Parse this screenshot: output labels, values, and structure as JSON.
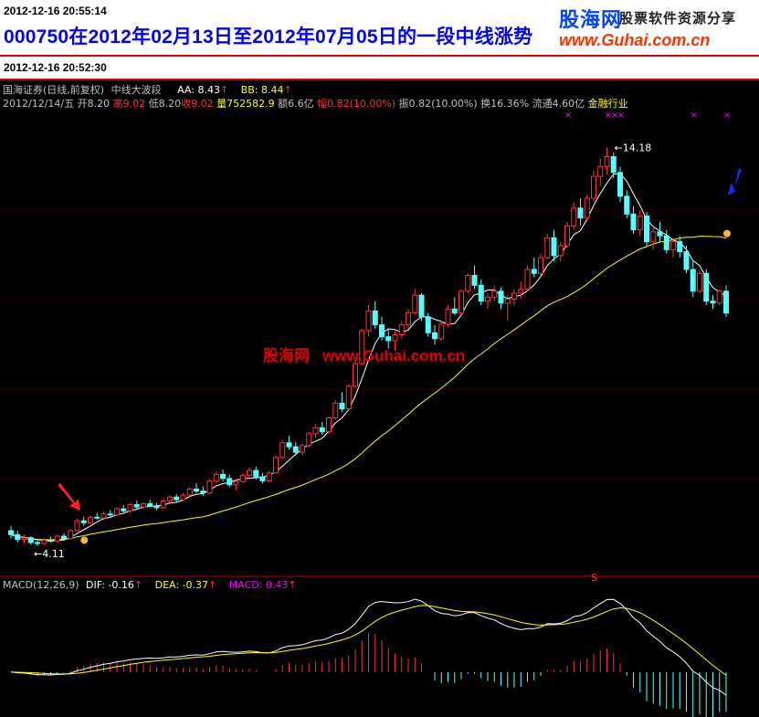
{
  "header": {
    "timestamp": "2012-12-16 20:55:14",
    "title": "000750在2012年02月13日至2012年07月05日的一段中线涨势"
  },
  "logo": {
    "name": "股海网",
    "tagline": "股票软件资源分享",
    "url": "www.Guhai.com.cn"
  },
  "subheader": {
    "timestamp": "2012-12-16 20:52:30"
  },
  "indicator_line": {
    "name": "国海证券(日线,前复权)",
    "formula": "中线大波段",
    "aa_label": "AA: 8.43",
    "bb_label": "BB: 8.44",
    "up_arrow": "↑"
  },
  "quote_line": {
    "date": "2012/12/14/五",
    "open": "开8.20",
    "high": "高9.02",
    "low": "低8.20",
    "close": "收9.02",
    "volume": "量752582.9",
    "amount": "额6.6亿",
    "change_pct": "幅0.82(10.00%)",
    "amplitude": "振0.82(10.00%)",
    "turnover": "换16.36%",
    "float_cap": "流通4.60亿",
    "sector": "金融行业"
  },
  "watermark": {
    "name": "股海网",
    "url": "www.Guhai.com.cn"
  },
  "price_annotations": {
    "high_label": "14.18",
    "low_label": "4.11",
    "s_marker": "S"
  },
  "macd_header": {
    "name": "MACD(12,26,9)",
    "dif": "DIF: -0.16",
    "dea": "DEA: -0.37",
    "macd": "MACD: 0.43",
    "up_arrow": "↑"
  },
  "colors": {
    "up": "#ff3232",
    "down": "#54ffff",
    "ma_short": "#ffffff",
    "ma_long": "#ffff00",
    "header_title": "#0000ff",
    "header_border": "#e00000",
    "macd_dea": "#ffff00",
    "macd_label": "#ff00ff",
    "buy_arrow": "#ff2020",
    "sell_arrow": "#1a2aff"
  },
  "chart_data": {
    "type": "candlestick",
    "price_range": [
      3.6,
      15.0
    ],
    "candles": [
      [
        4.5,
        4.62,
        4.3,
        4.4
      ],
      [
        4.4,
        4.5,
        4.2,
        4.28
      ],
      [
        4.28,
        4.4,
        4.18,
        4.32
      ],
      [
        4.32,
        4.36,
        4.15,
        4.2
      ],
      [
        4.2,
        4.3,
        4.11,
        4.18
      ],
      [
        4.18,
        4.3,
        4.14,
        4.26
      ],
      [
        4.26,
        4.35,
        4.2,
        4.24
      ],
      [
        4.24,
        4.4,
        4.2,
        4.36
      ],
      [
        4.36,
        4.44,
        4.25,
        4.3
      ],
      [
        4.3,
        4.55,
        4.28,
        4.5
      ],
      [
        4.5,
        4.8,
        4.48,
        4.75
      ],
      [
        4.75,
        4.85,
        4.62,
        4.7
      ],
      [
        4.7,
        4.88,
        4.68,
        4.84
      ],
      [
        4.84,
        4.95,
        4.78,
        4.82
      ],
      [
        4.82,
        4.98,
        4.76,
        4.92
      ],
      [
        4.92,
        5.02,
        4.85,
        4.9
      ],
      [
        4.9,
        5.1,
        4.86,
        5.05
      ],
      [
        5.05,
        5.15,
        4.96,
        5.0
      ],
      [
        5.0,
        5.2,
        4.96,
        5.16
      ],
      [
        5.16,
        5.26,
        5.05,
        5.1
      ],
      [
        5.1,
        5.22,
        5.04,
        5.18
      ],
      [
        5.18,
        5.28,
        5.1,
        5.12
      ],
      [
        5.12,
        5.2,
        5.02,
        5.08
      ],
      [
        5.08,
        5.3,
        5.05,
        5.25
      ],
      [
        5.25,
        5.4,
        5.2,
        5.35
      ],
      [
        5.35,
        5.42,
        5.22,
        5.28
      ],
      [
        5.28,
        5.45,
        5.25,
        5.4
      ],
      [
        5.4,
        5.6,
        5.36,
        5.55
      ],
      [
        5.55,
        5.7,
        5.45,
        5.5
      ],
      [
        5.5,
        5.62,
        5.38,
        5.45
      ],
      [
        5.45,
        5.8,
        5.42,
        5.75
      ],
      [
        5.75,
        6.0,
        5.7,
        5.92
      ],
      [
        5.92,
        6.05,
        5.75,
        5.82
      ],
      [
        5.82,
        5.92,
        5.6,
        5.66
      ],
      [
        5.66,
        5.78,
        5.52,
        5.74
      ],
      [
        5.74,
        5.95,
        5.7,
        5.9
      ],
      [
        5.9,
        6.1,
        5.84,
        6.02
      ],
      [
        6.02,
        6.12,
        5.8,
        5.86
      ],
      [
        5.86,
        5.96,
        5.7,
        5.76
      ],
      [
        5.76,
        6.0,
        5.72,
        5.96
      ],
      [
        5.96,
        6.4,
        5.94,
        6.35
      ],
      [
        6.35,
        6.8,
        6.3,
        6.72
      ],
      [
        6.72,
        6.9,
        6.55,
        6.62
      ],
      [
        6.62,
        6.75,
        6.4,
        6.48
      ],
      [
        6.48,
        6.7,
        6.4,
        6.65
      ],
      [
        6.65,
        7.0,
        6.6,
        6.95
      ],
      [
        6.95,
        7.2,
        6.85,
        7.1
      ],
      [
        7.1,
        7.25,
        6.92,
        7.0
      ],
      [
        7.0,
        7.4,
        6.95,
        7.35
      ],
      [
        7.35,
        7.8,
        7.3,
        7.72
      ],
      [
        7.72,
        8.0,
        7.5,
        7.58
      ],
      [
        7.58,
        8.2,
        7.55,
        8.15
      ],
      [
        8.15,
        8.8,
        8.1,
        8.72
      ],
      [
        8.72,
        9.6,
        8.68,
        9.55
      ],
      [
        9.55,
        10.2,
        9.4,
        10.05
      ],
      [
        10.05,
        10.3,
        9.6,
        9.7
      ],
      [
        9.7,
        9.9,
        9.3,
        9.4
      ],
      [
        9.4,
        9.6,
        9.1,
        9.3
      ],
      [
        9.3,
        9.55,
        9.05,
        9.45
      ],
      [
        9.45,
        9.8,
        9.35,
        9.7
      ],
      [
        9.7,
        10.1,
        9.6,
        10.0
      ],
      [
        10.0,
        10.6,
        9.95,
        10.45
      ],
      [
        10.45,
        10.5,
        9.8,
        9.9
      ],
      [
        9.9,
        10.0,
        9.4,
        9.5
      ],
      [
        9.5,
        9.7,
        9.2,
        9.35
      ],
      [
        9.35,
        9.8,
        9.3,
        9.72
      ],
      [
        9.72,
        10.2,
        9.65,
        10.1
      ],
      [
        10.1,
        10.4,
        9.95,
        10.0
      ],
      [
        10.0,
        10.6,
        9.95,
        10.55
      ],
      [
        10.55,
        11.0,
        10.5,
        10.95
      ],
      [
        10.95,
        11.2,
        10.6,
        10.7
      ],
      [
        10.7,
        10.85,
        10.2,
        10.3
      ],
      [
        10.3,
        10.5,
        10.1,
        10.4
      ],
      [
        10.4,
        10.7,
        10.3,
        10.55
      ],
      [
        10.55,
        10.65,
        10.1,
        10.25
      ],
      [
        10.25,
        10.45,
        9.8,
        10.35
      ],
      [
        10.35,
        10.6,
        10.2,
        10.5
      ],
      [
        10.5,
        10.8,
        10.35,
        10.6
      ],
      [
        10.6,
        11.2,
        10.55,
        11.1
      ],
      [
        11.1,
        11.4,
        10.9,
        11.0
      ],
      [
        11.0,
        11.5,
        10.95,
        11.4
      ],
      [
        11.4,
        12.0,
        11.35,
        11.9
      ],
      [
        11.9,
        12.1,
        11.3,
        11.45
      ],
      [
        11.45,
        11.8,
        11.3,
        11.7
      ],
      [
        11.7,
        12.3,
        11.65,
        12.2
      ],
      [
        12.2,
        12.8,
        12.1,
        12.65
      ],
      [
        12.65,
        12.9,
        12.2,
        12.4
      ],
      [
        12.4,
        13.0,
        12.3,
        12.9
      ],
      [
        12.9,
        13.6,
        12.8,
        13.45
      ],
      [
        13.45,
        13.9,
        13.2,
        13.7
      ],
      [
        13.7,
        14.18,
        13.5,
        13.95
      ],
      [
        13.95,
        14.05,
        13.4,
        13.55
      ],
      [
        13.55,
        13.7,
        12.8,
        12.95
      ],
      [
        12.95,
        13.1,
        12.4,
        12.5
      ],
      [
        12.5,
        12.7,
        12.0,
        12.1
      ],
      [
        12.1,
        12.6,
        11.95,
        12.45
      ],
      [
        12.45,
        12.55,
        11.7,
        11.8
      ],
      [
        11.8,
        12.2,
        11.6,
        12.05
      ],
      [
        12.05,
        12.3,
        11.8,
        11.95
      ],
      [
        11.95,
        12.1,
        11.5,
        11.6
      ],
      [
        11.6,
        11.9,
        11.4,
        11.8
      ],
      [
        11.8,
        11.95,
        11.4,
        11.55
      ],
      [
        11.55,
        11.7,
        11.0,
        11.1
      ],
      [
        11.1,
        11.3,
        10.4,
        10.55
      ],
      [
        10.55,
        11.1,
        10.5,
        11.0
      ],
      [
        11.0,
        11.1,
        10.2,
        10.3
      ],
      [
        10.3,
        10.45,
        10.1,
        10.25
      ],
      [
        10.25,
        10.6,
        10.2,
        10.55
      ],
      [
        10.55,
        10.7,
        9.9,
        10.0
      ]
    ]
  }
}
